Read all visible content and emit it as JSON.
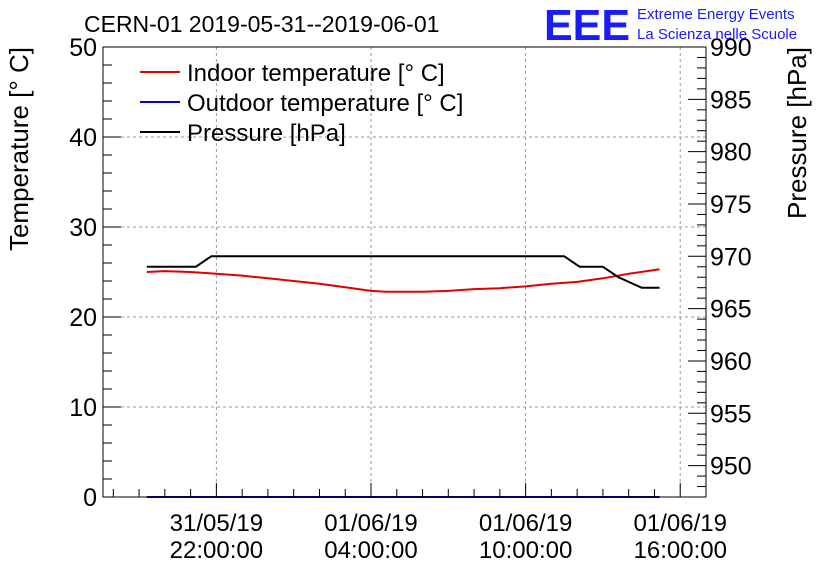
{
  "chart_data": {
    "type": "line",
    "title": "CERN-01 2019-05-31--2019-06-01",
    "brand": {
      "logo_text": "EEE",
      "line1": "Extreme Energy Events",
      "line2": "La Scienza nelle Scuole",
      "color": "#1a1aff"
    },
    "ylabel": "Temperature [° C]",
    "y2label": "Pressure [hPa]",
    "ylim": [
      0,
      50
    ],
    "y2lim": [
      947,
      990
    ],
    "y_ticks": [
      "0",
      "10",
      "20",
      "30",
      "40",
      "50"
    ],
    "y2_ticks": [
      "950",
      "955",
      "960",
      "965",
      "970",
      "975",
      "980",
      "985",
      "990"
    ],
    "x_ticks": [
      {
        "line1": "31/05/19",
        "line2": "22:00:00"
      },
      {
        "line1": "01/06/19",
        "line2": "04:00:00"
      },
      {
        "line1": "01/06/19",
        "line2": "10:00:00"
      },
      {
        "line1": "01/06/19",
        "line2": "16:00:00"
      }
    ],
    "x_unit": "hours since 2019-05-31 00:00",
    "x_ticks_hours": [
      22,
      28,
      34,
      40
    ],
    "xlim": [
      17.6,
      41.0
    ],
    "grid": true,
    "legend_position": "top-left",
    "series": [
      {
        "name": "Indoor temperature [° C]",
        "color": "#e00000",
        "axis": "left",
        "x": [
          19.3,
          20.0,
          21.0,
          22.0,
          23.0,
          24.0,
          25.0,
          26.0,
          27.0,
          28.0,
          28.6,
          29.0,
          30.0,
          31.0,
          32.0,
          33.0,
          34.0,
          35.0,
          36.0,
          37.0,
          38.0,
          39.2
        ],
        "values": [
          25.0,
          25.1,
          25.0,
          24.8,
          24.6,
          24.3,
          24.0,
          23.7,
          23.3,
          22.9,
          22.8,
          22.8,
          22.8,
          22.9,
          23.1,
          23.2,
          23.4,
          23.7,
          23.9,
          24.3,
          24.8,
          25.3
        ]
      },
      {
        "name": "Outdoor temperature [° C]",
        "color": "#0000e0",
        "axis": "left",
        "x": [
          19.3,
          39.2
        ],
        "values": [
          0,
          0
        ]
      },
      {
        "name": "Pressure [hPa]",
        "color": "#000000",
        "axis": "right",
        "x": [
          19.3,
          21.2,
          21.8,
          35.5,
          36.1,
          37.0,
          37.6,
          38.5,
          39.2
        ],
        "values": [
          969,
          969,
          970,
          970,
          969,
          969,
          968,
          967,
          967
        ]
      }
    ]
  }
}
